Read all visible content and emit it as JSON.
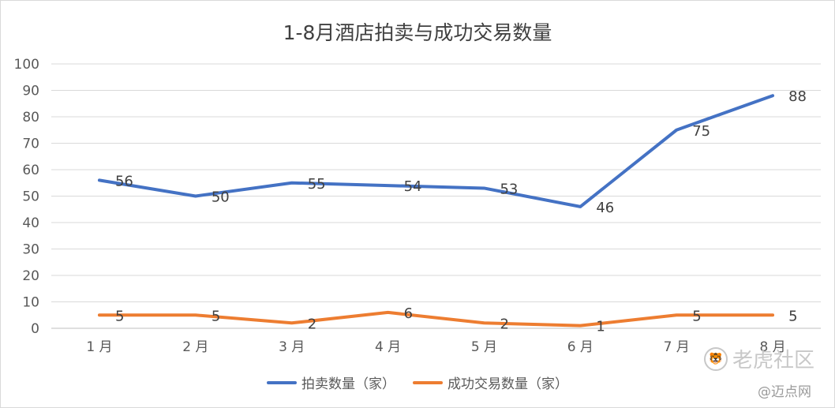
{
  "chart_data": {
    "type": "line",
    "title": "1-8月酒店拍卖与成功交易数量",
    "categories": [
      "1 月",
      "2 月",
      "3 月",
      "4 月",
      "5 月",
      "6 月",
      "7 月",
      "8 月"
    ],
    "ylim": [
      0,
      100
    ],
    "yticks": [
      0,
      10,
      20,
      30,
      40,
      50,
      60,
      70,
      80,
      90,
      100
    ],
    "grid": true,
    "legend_position": "bottom",
    "series": [
      {
        "name": "拍卖数量（家）",
        "color": "#4472c4",
        "values": [
          56,
          50,
          55,
          54,
          53,
          46,
          75,
          88
        ]
      },
      {
        "name": "成功交易数量（家）",
        "color": "#ed7d31",
        "values": [
          5,
          5,
          2,
          6,
          2,
          1,
          5,
          5
        ]
      }
    ]
  },
  "watermark": {
    "main_text": "老虎社区",
    "icon": "tiger-icon",
    "sub_text": "@迈点网"
  }
}
